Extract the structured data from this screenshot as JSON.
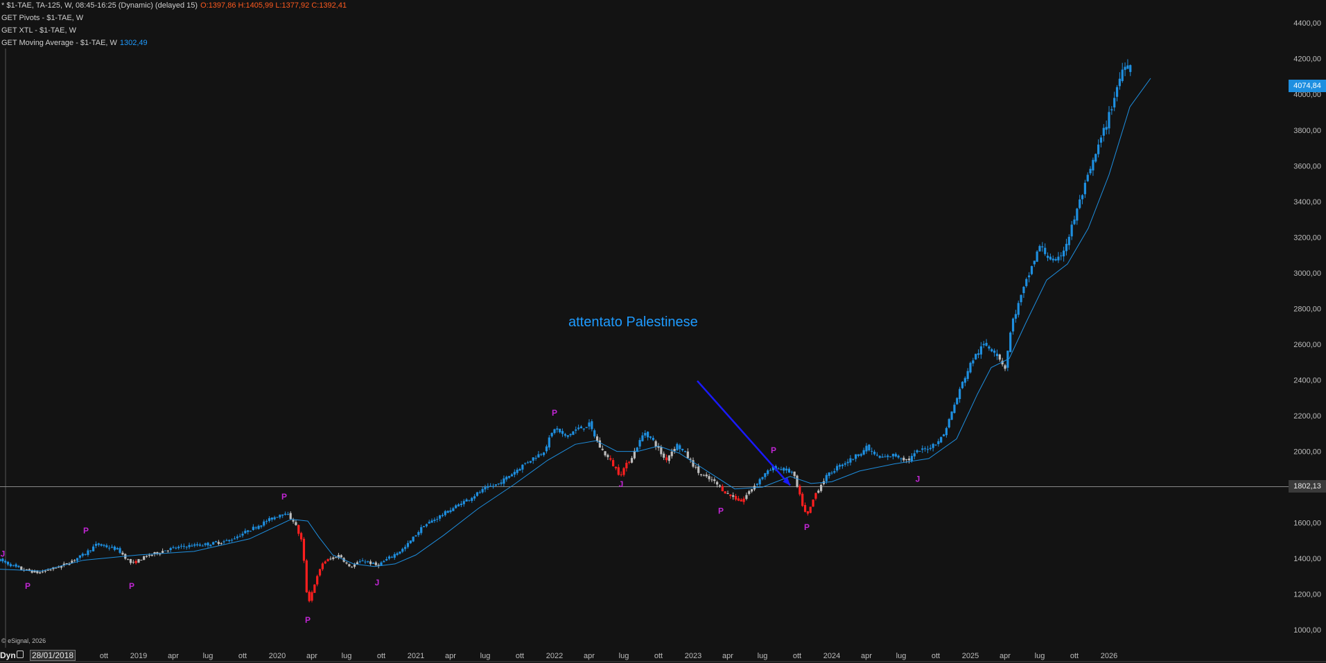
{
  "header": {
    "line1": "* $1-TAE, TA-125, W, 08:45-16:25 (Dynamic) (delayed 15)",
    "ohlc": "O:1397,86 H:1405,99 L:1377,92 C:1392,41",
    "line2": "GET Pivots - $1-TAE, W",
    "line3": "GET XTL - $1-TAE, W",
    "line4": "GET Moving Average - $1-TAE, W",
    "ma_value": "1302,49"
  },
  "price_badge": "4074,84",
  "crosshair_badge": "1802,13",
  "annotation": "attentato Palestinese",
  "copyright": "© eSignal, 2026",
  "footer": {
    "dyn": "Dyn",
    "date": "28/01/2018"
  },
  "colors": {
    "up": "#1e8fe0",
    "down": "#ff1f1f",
    "neutral": "#bdbdbd",
    "ma": "#1e8fe0",
    "pivot": "#c026d3",
    "background": "#131313",
    "arrow": "#1a1aff"
  },
  "chart_data": {
    "type": "candlestick",
    "title": "$1-TAE, TA-125, W",
    "y_ticks": [
      "1000,00",
      "1200,00",
      "1400,00",
      "1600,00",
      "1800,00",
      "2000,00",
      "2200,00",
      "2400,00",
      "2600,00",
      "2800,00",
      "3000,00",
      "3200,00",
      "3400,00",
      "3600,00",
      "3800,00",
      "4000,00",
      "4200,00",
      "4400,00"
    ],
    "y_values": [
      1000,
      1200,
      1400,
      1600,
      1800,
      2000,
      2200,
      2400,
      2600,
      2800,
      3000,
      3200,
      3400,
      3600,
      3800,
      4000,
      4200,
      4400
    ],
    "ylim": [
      900,
      4420
    ],
    "x_ticks": [
      {
        "label": "ott",
        "t": 2018.75,
        "major": false
      },
      {
        "label": "2019",
        "t": 2019.0,
        "major": true
      },
      {
        "label": "apr",
        "t": 2019.25,
        "major": false
      },
      {
        "label": "lug",
        "t": 2019.5,
        "major": false
      },
      {
        "label": "ott",
        "t": 2019.75,
        "major": false
      },
      {
        "label": "2020",
        "t": 2020.0,
        "major": true
      },
      {
        "label": "apr",
        "t": 2020.25,
        "major": false
      },
      {
        "label": "lug",
        "t": 2020.5,
        "major": false
      },
      {
        "label": "ott",
        "t": 2020.75,
        "major": false
      },
      {
        "label": "2021",
        "t": 2021.0,
        "major": true
      },
      {
        "label": "apr",
        "t": 2021.25,
        "major": false
      },
      {
        "label": "lug",
        "t": 2021.5,
        "major": false
      },
      {
        "label": "ott",
        "t": 2021.75,
        "major": false
      },
      {
        "label": "2022",
        "t": 2022.0,
        "major": true
      },
      {
        "label": "apr",
        "t": 2022.25,
        "major": false
      },
      {
        "label": "lug",
        "t": 2022.5,
        "major": false
      },
      {
        "label": "ott",
        "t": 2022.75,
        "major": false
      },
      {
        "label": "2023",
        "t": 2023.0,
        "major": true
      },
      {
        "label": "apr",
        "t": 2023.25,
        "major": false
      },
      {
        "label": "lug",
        "t": 2023.5,
        "major": false
      },
      {
        "label": "ott",
        "t": 2023.75,
        "major": false
      },
      {
        "label": "2024",
        "t": 2024.0,
        "major": true
      },
      {
        "label": "apr",
        "t": 2024.25,
        "major": false
      },
      {
        "label": "lug",
        "t": 2024.5,
        "major": false
      },
      {
        "label": "ott",
        "t": 2024.75,
        "major": false
      },
      {
        "label": "2025",
        "t": 2025.0,
        "major": true
      },
      {
        "label": "apr",
        "t": 2025.25,
        "major": false
      },
      {
        "label": "lug",
        "t": 2025.5,
        "major": false
      },
      {
        "label": "ott",
        "t": 2025.75,
        "major": false
      },
      {
        "label": "2026",
        "t": 2026.0,
        "major": true
      }
    ],
    "xlim": [
      2018.0,
      2027.3
    ],
    "price_path": [
      [
        2018.0,
        1390
      ],
      [
        2018.15,
        1340
      ],
      [
        2018.28,
        1320
      ],
      [
        2018.45,
        1360
      ],
      [
        2018.6,
        1420
      ],
      [
        2018.7,
        1480
      ],
      [
        2018.85,
        1450
      ],
      [
        2018.95,
        1370
      ],
      [
        2019.05,
        1410
      ],
      [
        2019.2,
        1450
      ],
      [
        2019.35,
        1470
      ],
      [
        2019.5,
        1480
      ],
      [
        2019.65,
        1500
      ],
      [
        2019.8,
        1560
      ],
      [
        2019.95,
        1620
      ],
      [
        2020.05,
        1660
      ],
      [
        2020.12,
        1610
      ],
      [
        2020.18,
        1490
      ],
      [
        2020.22,
        1140
      ],
      [
        2020.27,
        1260
      ],
      [
        2020.33,
        1380
      ],
      [
        2020.45,
        1420
      ],
      [
        2020.52,
        1350
      ],
      [
        2020.62,
        1390
      ],
      [
        2020.72,
        1360
      ],
      [
        2020.8,
        1400
      ],
      [
        2020.92,
        1460
      ],
      [
        2021.05,
        1580
      ],
      [
        2021.2,
        1650
      ],
      [
        2021.35,
        1720
      ],
      [
        2021.5,
        1790
      ],
      [
        2021.6,
        1820
      ],
      [
        2021.7,
        1880
      ],
      [
        2021.8,
        1940
      ],
      [
        2021.92,
        2000
      ],
      [
        2022.0,
        2130
      ],
      [
        2022.08,
        2080
      ],
      [
        2022.15,
        2120
      ],
      [
        2022.25,
        2150
      ],
      [
        2022.33,
        2020
      ],
      [
        2022.4,
        1950
      ],
      [
        2022.47,
        1870
      ],
      [
        2022.55,
        1960
      ],
      [
        2022.65,
        2110
      ],
      [
        2022.72,
        2050
      ],
      [
        2022.8,
        1950
      ],
      [
        2022.88,
        2040
      ],
      [
        2022.95,
        1980
      ],
      [
        2023.05,
        1870
      ],
      [
        2023.15,
        1830
      ],
      [
        2023.25,
        1760
      ],
      [
        2023.35,
        1720
      ],
      [
        2023.42,
        1790
      ],
      [
        2023.5,
        1860
      ],
      [
        2023.58,
        1910
      ],
      [
        2023.65,
        1900
      ],
      [
        2023.72,
        1880
      ],
      [
        2023.78,
        1720
      ],
      [
        2023.82,
        1630
      ],
      [
        2023.88,
        1760
      ],
      [
        2023.95,
        1850
      ],
      [
        2024.05,
        1920
      ],
      [
        2024.15,
        1960
      ],
      [
        2024.25,
        2020
      ],
      [
        2024.35,
        1960
      ],
      [
        2024.45,
        1980
      ],
      [
        2024.55,
        1950
      ],
      [
        2024.62,
        2000
      ],
      [
        2024.7,
        2020
      ],
      [
        2024.8,
        2080
      ],
      [
        2024.88,
        2250
      ],
      [
        2024.95,
        2400
      ],
      [
        2025.02,
        2520
      ],
      [
        2025.1,
        2600
      ],
      [
        2025.18,
        2560
      ],
      [
        2025.25,
        2470
      ],
      [
        2025.3,
        2720
      ],
      [
        2025.38,
        2900
      ],
      [
        2025.45,
        3050
      ],
      [
        2025.5,
        3150
      ],
      [
        2025.55,
        3100
      ],
      [
        2025.62,
        3050
      ],
      [
        2025.7,
        3180
      ],
      [
        2025.78,
        3380
      ],
      [
        2025.85,
        3540
      ],
      [
        2025.92,
        3700
      ],
      [
        2026.0,
        3880
      ],
      [
        2026.05,
        4020
      ],
      [
        2026.1,
        4150
      ],
      [
        2026.13,
        4200
      ],
      [
        2026.17,
        4075
      ]
    ],
    "moving_average": [
      [
        2018.0,
        1340
      ],
      [
        2018.3,
        1330
      ],
      [
        2018.6,
        1390
      ],
      [
        2019.0,
        1420
      ],
      [
        2019.4,
        1440
      ],
      [
        2019.8,
        1510
      ],
      [
        2020.1,
        1620
      ],
      [
        2020.22,
        1610
      ],
      [
        2020.3,
        1520
      ],
      [
        2020.4,
        1420
      ],
      [
        2020.55,
        1370
      ],
      [
        2020.7,
        1355
      ],
      [
        2020.85,
        1370
      ],
      [
        2021.0,
        1420
      ],
      [
        2021.2,
        1530
      ],
      [
        2021.45,
        1680
      ],
      [
        2021.7,
        1810
      ],
      [
        2021.95,
        1950
      ],
      [
        2022.15,
        2040
      ],
      [
        2022.3,
        2060
      ],
      [
        2022.45,
        2000
      ],
      [
        2022.6,
        2000
      ],
      [
        2022.75,
        2030
      ],
      [
        2022.9,
        1990
      ],
      [
        2023.1,
        1890
      ],
      [
        2023.3,
        1790
      ],
      [
        2023.5,
        1800
      ],
      [
        2023.7,
        1860
      ],
      [
        2023.85,
        1820
      ],
      [
        2024.0,
        1830
      ],
      [
        2024.2,
        1890
      ],
      [
        2024.45,
        1930
      ],
      [
        2024.7,
        1960
      ],
      [
        2024.9,
        2070
      ],
      [
        2025.05,
        2320
      ],
      [
        2025.15,
        2470
      ],
      [
        2025.28,
        2520
      ],
      [
        2025.4,
        2720
      ],
      [
        2025.55,
        2960
      ],
      [
        2025.7,
        3050
      ],
      [
        2025.85,
        3250
      ],
      [
        2026.0,
        3550
      ],
      [
        2026.15,
        3930
      ],
      [
        2026.3,
        4090
      ]
    ],
    "pivots": [
      {
        "label": "J",
        "t": 2018.02,
        "price": 1410
      },
      {
        "label": "P",
        "t": 2018.2,
        "price": 1230
      },
      {
        "label": "P",
        "t": 2018.62,
        "price": 1540
      },
      {
        "label": "P",
        "t": 2018.95,
        "price": 1230
      },
      {
        "label": "P",
        "t": 2020.05,
        "price": 1730
      },
      {
        "label": "P",
        "t": 2020.22,
        "price": 1040
      },
      {
        "label": "J",
        "t": 2020.72,
        "price": 1250
      },
      {
        "label": "P",
        "t": 2022.0,
        "price": 2200
      },
      {
        "label": "J",
        "t": 2022.48,
        "price": 1800
      },
      {
        "label": "P",
        "t": 2023.2,
        "price": 1650
      },
      {
        "label": "P",
        "t": 2023.58,
        "price": 1990
      },
      {
        "label": "P",
        "t": 2023.82,
        "price": 1560
      },
      {
        "label": "J",
        "t": 2024.62,
        "price": 1830
      }
    ],
    "annotation_arrow": {
      "from": [
        2023.03,
        2395
      ],
      "to": [
        2023.7,
        1810
      ]
    },
    "annotation_position": [
      2022.1,
      2690
    ],
    "crosshair_price": 1802.13,
    "last_price": 4074.84
  }
}
